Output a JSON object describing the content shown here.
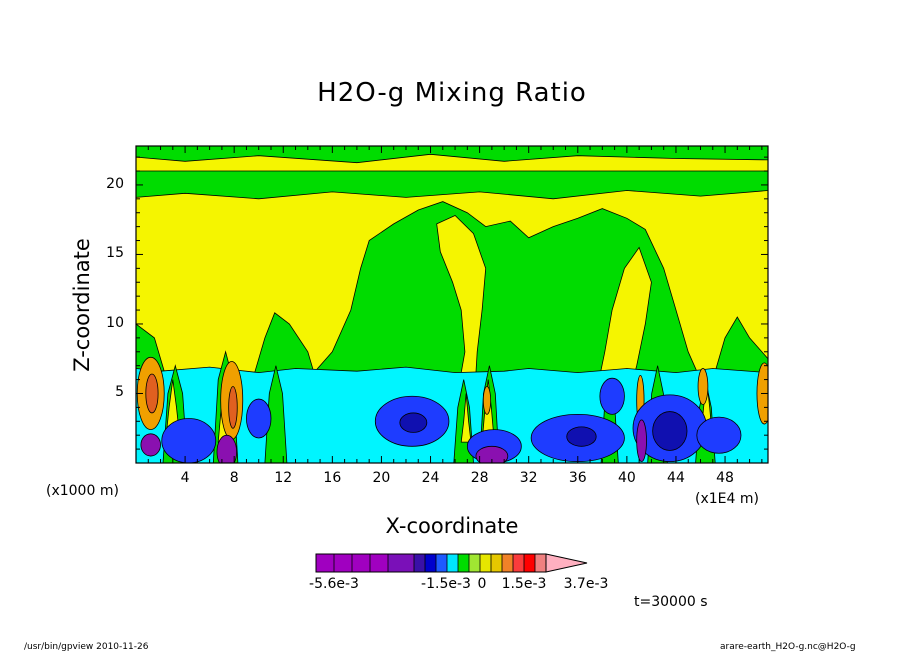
{
  "chart_data": {
    "type": "heatmap",
    "title": "H2O-g Mixing Ratio",
    "xlabel": "X-coordinate",
    "ylabel": "Z-coordinate",
    "x_unit_label": "(x1E4 m)",
    "y_unit_label": "(x1000 m)",
    "time_label": "t=30000 s",
    "xlim": [
      0,
      51.5
    ],
    "ylim": [
      0,
      22.8
    ],
    "x_ticks": [
      4,
      8,
      12,
      16,
      20,
      24,
      28,
      32,
      36,
      40,
      44,
      48
    ],
    "y_ticks": [
      5,
      10,
      15,
      20
    ],
    "colorbar": {
      "colors": [
        "#a000c0",
        "#a000c0",
        "#a000c0",
        "#a000c0",
        "#7a10b8",
        "#3a10a8",
        "#0000cd",
        "#1e5aff",
        "#00e5ff",
        "#00dc00",
        "#a0e632",
        "#e6e600",
        "#e6c800",
        "#f08228",
        "#fa3c3c",
        "#ff0000",
        "#f08080"
      ],
      "extend_color": "#ffb0c0",
      "labels": [
        "-5.6e-3",
        "-1.5e-3",
        "0",
        "1.5e-3",
        "3.7e-3"
      ],
      "label_values": [
        -0.0056,
        -0.0015,
        0,
        0.0015,
        0.0037
      ]
    },
    "field_colors": {
      "yellow": "#f5f500",
      "green": "#00dc00",
      "cyan": "#00f5ff",
      "blue": "#1e3cff",
      "dark_blue": "#1010b0",
      "purple": "#8a10b0",
      "orange": "#f0a000",
      "dark_orange": "#e06020"
    }
  },
  "footer": {
    "left": "/usr/bin/gpview  2010-11-26",
    "right": "arare-earth_H2O-g.nc@H2O-g"
  }
}
